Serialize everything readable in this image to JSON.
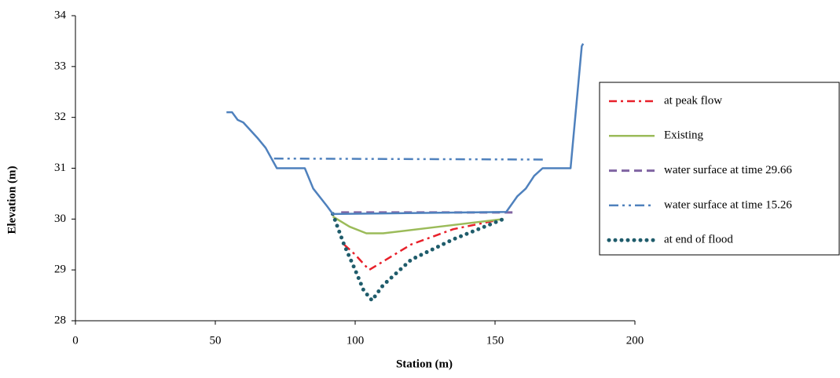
{
  "chart_data": {
    "type": "line",
    "xlabel": "Station (m)",
    "ylabel": "Elevation (m)",
    "xlim": [
      0,
      200
    ],
    "xticks": [
      0,
      50,
      100,
      150,
      200
    ],
    "ylim": [
      28,
      34
    ],
    "yticks": [
      28,
      29,
      30,
      31,
      32,
      33,
      34
    ],
    "legend": "right",
    "series": [
      {
        "name": "at peak flow",
        "color": "#e8202a",
        "style": "dash-dot",
        "x": [
          96,
          100,
          105,
          120,
          135,
          150
        ],
        "y": [
          29.5,
          29.3,
          29.0,
          29.5,
          29.8,
          29.97
        ]
      },
      {
        "name": "Existing",
        "color": "#9bbb59",
        "style": "solid",
        "x": [
          92,
          98,
          104,
          110,
          130,
          153
        ],
        "y": [
          30.05,
          29.85,
          29.72,
          29.72,
          29.85,
          30.0
        ]
      },
      {
        "name": "water surface at time 29.66",
        "color": "#8064a2",
        "style": "dash",
        "x": [
          95,
          157
        ],
        "y": [
          30.13,
          30.13
        ]
      },
      {
        "name": "water surface at time 15.26",
        "color": "#4f81bd",
        "style": "dash-dot-dot",
        "x": [
          71,
          168
        ],
        "y": [
          31.19,
          31.17
        ]
      },
      {
        "name": "at end of flood",
        "color": "#1f5c6b",
        "style": "dot",
        "x": [
          92,
          96,
          100,
          103,
          106,
          110,
          120,
          135,
          153
        ],
        "y": [
          30.1,
          29.5,
          29.0,
          28.6,
          28.4,
          28.7,
          29.2,
          29.6,
          30.0
        ]
      },
      {
        "color": "#4f81bd",
        "style": "solid",
        "x": [
          54,
          56,
          58,
          60,
          65,
          68,
          72,
          82,
          85,
          90,
          92,
          154,
          158,
          161,
          164,
          167,
          177,
          181,
          181.5
        ],
        "y": [
          32.1,
          32.1,
          31.95,
          31.9,
          31.6,
          31.4,
          31.0,
          31.0,
          30.6,
          30.25,
          30.1,
          30.14,
          30.45,
          30.6,
          30.85,
          31.0,
          31.0,
          33.4,
          33.45
        ]
      }
    ]
  }
}
